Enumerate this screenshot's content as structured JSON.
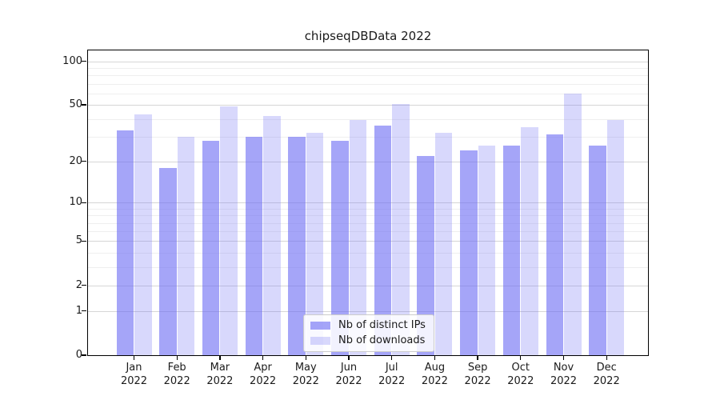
{
  "title": "chipseqDBData 2022",
  "chart_data": {
    "type": "bar",
    "title": "chipseqDBData 2022",
    "categories": [
      "Jan",
      "Feb",
      "Mar",
      "Apr",
      "May",
      "Jun",
      "Jul",
      "Aug",
      "Sep",
      "Oct",
      "Nov",
      "Dec"
    ],
    "category_year": "2022",
    "series": [
      {
        "name": "Nb of distinct IPs",
        "color": "rgba(110,110,243,0.62)",
        "values": [
          33,
          18,
          28,
          30,
          30,
          28,
          36,
          22,
          24,
          26,
          31,
          26
        ]
      },
      {
        "name": "Nb of downloads",
        "color": "rgba(110,110,243,0.27)",
        "values": [
          43,
          30,
          49,
          42,
          32,
          39,
          51,
          32,
          26,
          35,
          60,
          39
        ]
      }
    ],
    "yscale": "log1p",
    "y_ticks": [
      100,
      50,
      20,
      10,
      5,
      2,
      1,
      0
    ],
    "y_minor_ticks": [
      3,
      4,
      6,
      7,
      8,
      9,
      30,
      40,
      60,
      70,
      80,
      90
    ],
    "ylim": [
      0,
      119
    ],
    "grid": true,
    "legend_position": "lower center"
  },
  "colors": {
    "grid_major": "#d6d6d6",
    "grid_minor": "#efefef",
    "spine": "#000000",
    "text": "#1a1a1a",
    "legend_bg": "rgba(255,255,255,0.85)",
    "legend_border": "#cccccc"
  }
}
